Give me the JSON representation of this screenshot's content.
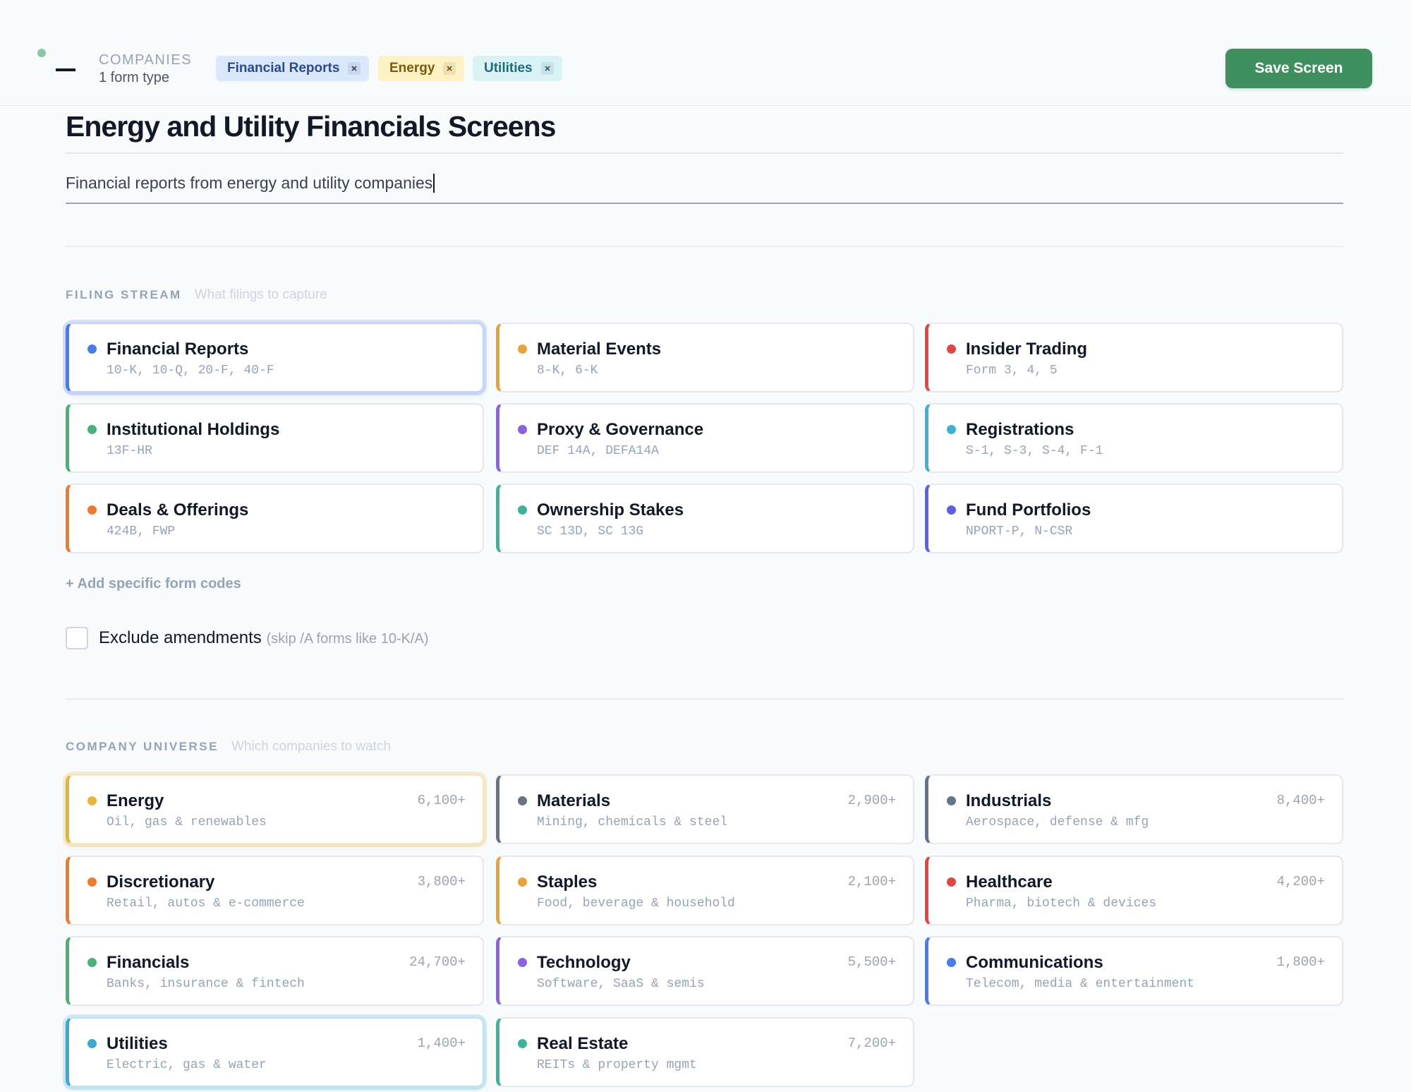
{
  "header": {
    "section": "COMPANIES",
    "count": "1 form type",
    "chips": [
      {
        "label": "Financial Reports",
        "bg": "#dbe7fb",
        "fg": "#2c4a8a"
      },
      {
        "label": "Energy",
        "bg": "#fdf2c4",
        "fg": "#7a5a0c"
      },
      {
        "label": "Utilities",
        "bg": "#d9f3f7",
        "fg": "#1f6b7a"
      }
    ],
    "save": "Save Screen"
  },
  "title": "Energy and Utility Financials Screens",
  "description": "Financial reports from energy and utility companies",
  "filing_stream": {
    "label": "FILING STREAM",
    "hint": "What filings to capture",
    "items": [
      {
        "name": "Financial Reports",
        "forms": "10-K, 10-Q, 20-F, 40-F",
        "color": "#4a7be8",
        "selected": true
      },
      {
        "name": "Material Events",
        "forms": "8-K, 6-K",
        "color": "#e8a23a",
        "selected": false
      },
      {
        "name": "Insider Trading",
        "forms": "Form 3, 4, 5",
        "color": "#e04848",
        "selected": false
      },
      {
        "name": "Institutional Holdings",
        "forms": "13F-HR",
        "color": "#4cb07a",
        "selected": false
      },
      {
        "name": "Proxy & Governance",
        "forms": "DEF 14A, DEFA14A",
        "color": "#8b62e0",
        "selected": false
      },
      {
        "name": "Registrations",
        "forms": "S-1, S-3, S-4, F-1",
        "color": "#3fb0cf",
        "selected": false
      },
      {
        "name": "Deals & Offerings",
        "forms": "424B, FWP",
        "color": "#ea7a35",
        "selected": false
      },
      {
        "name": "Ownership Stakes",
        "forms": "SC 13D, SC 13G",
        "color": "#3fb39a",
        "selected": false
      },
      {
        "name": "Fund Portfolios",
        "forms": "NPORT-P, N-CSR",
        "color": "#5a62e0",
        "selected": false
      }
    ]
  },
  "add_link": "+ Add specific form codes",
  "exclude": {
    "label": "Exclude amendments",
    "hint": "(skip /A forms like 10-K/A)"
  },
  "company_universe": {
    "label": "COMPANY UNIVERSE",
    "hint": "Which companies to watch",
    "items": [
      {
        "name": "Energy",
        "desc": "Oil, gas & renewables",
        "count": "6,100+",
        "color": "#e3b53c",
        "selected": true
      },
      {
        "name": "Materials",
        "desc": "Mining, chemicals & steel",
        "count": "2,900+",
        "color": "#6b7280",
        "selected": false
      },
      {
        "name": "Industrials",
        "desc": "Aerospace, defense & mfg",
        "count": "8,400+",
        "color": "#64748b",
        "selected": false
      },
      {
        "name": "Discretionary",
        "desc": "Retail, autos & e-commerce",
        "count": "3,800+",
        "color": "#ea7a35",
        "selected": false
      },
      {
        "name": "Staples",
        "desc": "Food, beverage & household",
        "count": "2,100+",
        "color": "#e8a23a",
        "selected": false
      },
      {
        "name": "Healthcare",
        "desc": "Pharma, biotech & devices",
        "count": "4,200+",
        "color": "#e04848",
        "selected": false
      },
      {
        "name": "Financials",
        "desc": "Banks, insurance & fintech",
        "count": "24,700+",
        "color": "#4cb07a",
        "selected": false
      },
      {
        "name": "Technology",
        "desc": "Software, SaaS & semis",
        "count": "5,500+",
        "color": "#8b62e0",
        "selected": false
      },
      {
        "name": "Communications",
        "desc": "Telecom, media & entertainment",
        "count": "1,800+",
        "color": "#4a7be8",
        "selected": false
      },
      {
        "name": "Utilities",
        "desc": "Electric, gas & water",
        "count": "1,400+",
        "color": "#3fa8cf",
        "selected": true
      },
      {
        "name": "Real Estate",
        "desc": "REITs & property mgmt",
        "count": "7,200+",
        "color": "#3fb39a",
        "selected": false
      }
    ]
  }
}
